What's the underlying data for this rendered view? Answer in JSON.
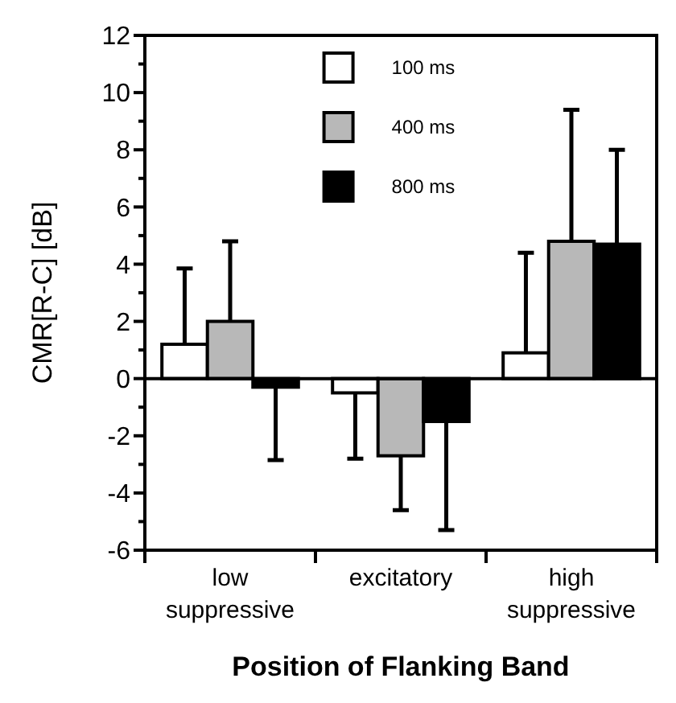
{
  "chart_data": {
    "type": "bar",
    "xlabel": "Position of Flanking Band",
    "ylabel": "CMR[R-C]  [dB]",
    "categories": [
      "low\nsuppressive",
      "excitatory",
      "high\nsuppressive"
    ],
    "series": [
      {
        "name": "100 ms",
        "color": "#ffffff",
        "values": [
          1.2,
          -0.5,
          0.9
        ],
        "errors": [
          [
            1.2,
            3.85
          ],
          [
            -2.8,
            -0.5
          ],
          [
            0.9,
            4.4
          ]
        ]
      },
      {
        "name": "400 ms",
        "color": "#b8b8b8",
        "values": [
          2.0,
          -2.7,
          4.8
        ],
        "errors": [
          [
            2.0,
            4.8
          ],
          [
            -4.6,
            -2.7
          ],
          [
            4.8,
            9.4
          ]
        ]
      },
      {
        "name": "800 ms",
        "color": "#000000",
        "values": [
          -0.3,
          -1.5,
          4.7
        ],
        "errors": [
          [
            -2.85,
            -0.3
          ],
          [
            -5.3,
            -1.5
          ],
          [
            4.7,
            8.0
          ]
        ]
      }
    ],
    "ylim": [
      -6,
      12
    ],
    "yticks": [
      -6,
      {
        "value": -5,
        "label": null
      },
      -4,
      {
        "value": -3,
        "label": null
      },
      -2,
      {
        "value": -1,
        "label": null
      },
      0,
      {
        "value": 1,
        "label": null
      },
      2,
      {
        "value": 3,
        "label": null
      },
      4,
      {
        "value": 5,
        "label": null
      },
      6,
      {
        "value": 7,
        "label": null
      },
      8,
      {
        "value": 9,
        "label": null
      },
      10,
      {
        "value": 11,
        "label": null
      },
      12
    ],
    "ref_lines": [
      {
        "axis": "y",
        "value": 0,
        "color": "#000000"
      }
    ],
    "grid": false,
    "legend": "top"
  }
}
